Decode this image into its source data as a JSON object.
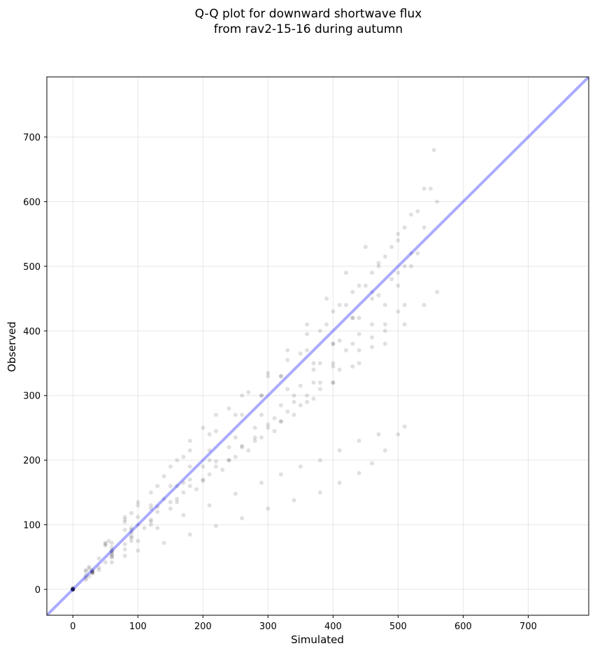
{
  "chart_data": {
    "type": "scatter",
    "title": "Q-Q plot for downward shortwave flux",
    "subtitle": "from rav2-15-16 during autumn",
    "xlabel": "Simulated",
    "ylabel": "Observed",
    "xlim": [
      -40,
      793
    ],
    "ylim": [
      -40,
      793
    ],
    "xticks": [
      0,
      100,
      200,
      300,
      400,
      500,
      600,
      700
    ],
    "yticks": [
      0,
      100,
      200,
      300,
      400,
      500,
      600,
      700
    ],
    "grid": true,
    "reference_line": {
      "label": "",
      "color": "#0000ff",
      "alpha": 0.33,
      "from": [
        -40,
        -40
      ],
      "to": [
        793,
        793
      ]
    },
    "point_color": "#000000",
    "point_alpha": 0.12,
    "series": [
      {
        "x": [
          0,
          20,
          50,
          80,
          100,
          150,
          180,
          220,
          260,
          300,
          330,
          360,
          400,
          430,
          460,
          480,
          500,
          520,
          540,
          555
        ],
        "y": [
          2,
          28,
          70,
          108,
          130,
          190,
          230,
          270,
          300,
          330,
          355,
          395,
          430,
          460,
          490,
          515,
          540,
          580,
          620,
          680
        ]
      },
      {
        "x": [
          0,
          25,
          50,
          80,
          100,
          140,
          180,
          220,
          260,
          290,
          320,
          360,
          390,
          420,
          450,
          470,
          490,
          510,
          530,
          550
        ],
        "y": [
          1,
          32,
          72,
          112,
          135,
          175,
          215,
          245,
          270,
          300,
          330,
          370,
          410,
          440,
          470,
          500,
          530,
          560,
          585,
          620
        ]
      },
      {
        "x": [
          0,
          30,
          60,
          90,
          120,
          160,
          200,
          240,
          280,
          320,
          350,
          380,
          410,
          440,
          470,
          500,
          520,
          540,
          560
        ],
        "y": [
          0,
          30,
          65,
          95,
          125,
          160,
          190,
          220,
          250,
          285,
          315,
          350,
          385,
          420,
          455,
          490,
          520,
          560,
          600
        ]
      },
      {
        "x": [
          0,
          30,
          60,
          90,
          130,
          170,
          210,
          250,
          290,
          330,
          370,
          400,
          430,
          460,
          490,
          510,
          530
        ],
        "y": [
          0,
          28,
          60,
          92,
          128,
          165,
          200,
          235,
          270,
          310,
          350,
          380,
          420,
          450,
          480,
          500,
          520
        ]
      },
      {
        "x": [
          0,
          25,
          55,
          90,
          130,
          170,
          210,
          250,
          290,
          320,
          350,
          380,
          410,
          440,
          470,
          500
        ],
        "y": [
          0,
          35,
          75,
          118,
          160,
          205,
          240,
          270,
          300,
          330,
          365,
          400,
          440,
          470,
          505,
          550
        ]
      },
      {
        "x": [
          0,
          20,
          50,
          80,
          120,
          160,
          200,
          240,
          270,
          300,
          330,
          360,
          390,
          420,
          450
        ],
        "y": [
          2,
          30,
          68,
          104,
          150,
          200,
          250,
          280,
          305,
          335,
          370,
          410,
          450,
          490,
          530
        ]
      },
      {
        "x": [
          0,
          30,
          60,
          90,
          120,
          150,
          180,
          220,
          260,
          300,
          340,
          370,
          400,
          430,
          460,
          480,
          500,
          520
        ],
        "y": [
          0,
          26,
          54,
          82,
          108,
          135,
          160,
          190,
          220,
          255,
          290,
          320,
          350,
          380,
          410,
          440,
          470,
          500
        ]
      },
      {
        "x": [
          0,
          30,
          60,
          90,
          120,
          160,
          200,
          240,
          280,
          320,
          360,
          400,
          440,
          480,
          510,
          540,
          560
        ],
        "y": [
          0,
          26,
          55,
          80,
          105,
          140,
          170,
          200,
          230,
          260,
          290,
          320,
          350,
          380,
          410,
          440,
          460
        ]
      },
      {
        "x": [
          0,
          30,
          60,
          90,
          130,
          170,
          210,
          250,
          290,
          320,
          350,
          380,
          410,
          440,
          460,
          480,
          500,
          510
        ],
        "y": [
          0,
          27,
          58,
          88,
          120,
          150,
          178,
          205,
          235,
          260,
          285,
          310,
          340,
          370,
          390,
          410,
          430,
          440
        ]
      },
      {
        "x": [
          0,
          30,
          60,
          90,
          120,
          160,
          200,
          240,
          280,
          310,
          340,
          370,
          400,
          430,
          460
        ],
        "y": [
          0,
          25,
          50,
          75,
          100,
          135,
          168,
          200,
          235,
          265,
          300,
          340,
          380,
          420,
          460
        ]
      },
      {
        "x": [
          0,
          25,
          50,
          80,
          110,
          150,
          190,
          230,
          270,
          310,
          340,
          370,
          400,
          430,
          460,
          480
        ],
        "y": [
          0,
          20,
          42,
          70,
          95,
          125,
          155,
          185,
          215,
          245,
          270,
          295,
          320,
          345,
          375,
          400
        ]
      },
      {
        "x": [
          0,
          20,
          40,
          60,
          80,
          100,
          140,
          180,
          220,
          260,
          300,
          340,
          380,
          410,
          440,
          460,
          480,
          500,
          510
        ],
        "y": [
          0,
          15,
          30,
          42,
          52,
          60,
          72,
          85,
          98,
          110,
          125,
          138,
          150,
          165,
          180,
          195,
          215,
          240,
          252
        ]
      },
      {
        "x": [
          0,
          20,
          40,
          60,
          80,
          100,
          130,
          170,
          210,
          250,
          290,
          320,
          350,
          380,
          410,
          440,
          470
        ],
        "y": [
          0,
          18,
          34,
          50,
          62,
          75,
          95,
          115,
          130,
          148,
          165,
          178,
          190,
          200,
          215,
          230,
          240
        ]
      },
      {
        "x": [
          0,
          30,
          60,
          100,
          140,
          180,
          220,
          260,
          300,
          330,
          360,
          380,
          400,
          420,
          440
        ],
        "y": [
          0,
          28,
          60,
          100,
          140,
          170,
          198,
          222,
          250,
          275,
          300,
          320,
          345,
          370,
          395
        ]
      },
      {
        "x": [
          0,
          20,
          40,
          60,
          80,
          100,
          120,
          150,
          180,
          210
        ],
        "y": [
          0,
          22,
          48,
          72,
          92,
          112,
          130,
          160,
          190,
          215
        ]
      }
    ]
  }
}
